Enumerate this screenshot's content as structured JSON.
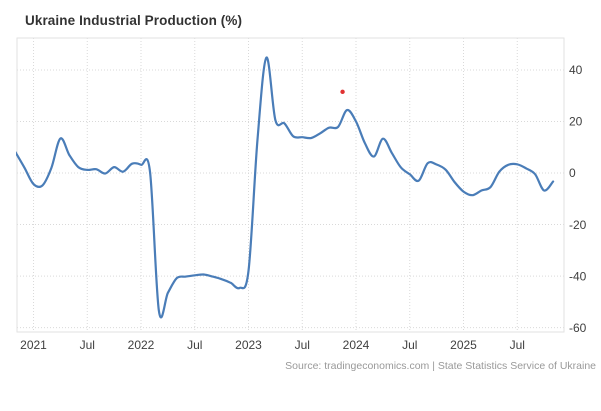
{
  "header": {
    "title": "Ukraine Industrial Production (%)"
  },
  "source": {
    "text": "Source: tradingeconomics.com | State Statistics Service of Ukraine"
  },
  "chart_data": {
    "type": "line",
    "title": "Ukraine Industrial Production (%)",
    "xlabel": "",
    "ylabel": "",
    "unit": "%",
    "legend": "none",
    "grid": "dotted",
    "y_axis_side": "right",
    "ylim": [
      -61.7,
      52.4
    ],
    "y_ticks": [
      40,
      20,
      0,
      -20,
      -40,
      -60
    ],
    "x_tick_labels": [
      "2021",
      "Jul",
      "2022",
      "Jul",
      "2023",
      "Jul",
      "2024",
      "Jul",
      "2025",
      "Jul"
    ],
    "x_ticks": [
      {
        "label": "2021",
        "month": "2021-01"
      },
      {
        "label": "Jul",
        "month": "2021-07"
      },
      {
        "label": "2022",
        "month": "2022-01"
      },
      {
        "label": "Jul",
        "month": "2022-07"
      },
      {
        "label": "2023",
        "month": "2023-01"
      },
      {
        "label": "Jul",
        "month": "2023-07"
      },
      {
        "label": "2024",
        "month": "2024-01"
      },
      {
        "label": "Jul",
        "month": "2024-07"
      },
      {
        "label": "2025",
        "month": "2025-01"
      },
      {
        "label": "Jul",
        "month": "2025-07"
      }
    ],
    "months": [
      "2020-11",
      "2020-12",
      "2021-01",
      "2021-02",
      "2021-03",
      "2021-04",
      "2021-05",
      "2021-06",
      "2021-07",
      "2021-08",
      "2021-09",
      "2021-10",
      "2021-11",
      "2021-12",
      "2022-01",
      "2022-02",
      "2022-03",
      "2022-04",
      "2022-05",
      "2022-06",
      "2022-07",
      "2022-08",
      "2022-09",
      "2022-10",
      "2022-11",
      "2022-12",
      "2023-01",
      "2023-02",
      "2023-03",
      "2023-04",
      "2023-05",
      "2023-06",
      "2023-07",
      "2023-08",
      "2023-09",
      "2023-10",
      "2023-11",
      "2023-12",
      "2024-01",
      "2024-02",
      "2024-03",
      "2024-04",
      "2024-05",
      "2024-06",
      "2024-07",
      "2024-08",
      "2024-09",
      "2024-10",
      "2024-11",
      "2024-12",
      "2025-01",
      "2025-02",
      "2025-03",
      "2025-04",
      "2025-05",
      "2025-06",
      "2025-07",
      "2025-08",
      "2025-09",
      "2025-10",
      "2025-11"
    ],
    "values": [
      8.0,
      2.0,
      -4.3,
      -4.8,
      2.0,
      13.4,
      7.0,
      2.3,
      1.2,
      1.5,
      -0.2,
      2.3,
      0.5,
      3.6,
      3.2,
      0.5,
      -53.5,
      -46.5,
      -40.8,
      -40.2,
      -39.7,
      -39.4,
      -40.2,
      -41.2,
      -42.6,
      -44.6,
      -38.0,
      13.0,
      44.8,
      20.5,
      19.3,
      14.2,
      13.9,
      13.6,
      15.4,
      17.6,
      17.9,
      24.4,
      20.0,
      11.5,
      6.4,
      13.3,
      7.8,
      2.2,
      -0.5,
      -3.0,
      3.8,
      3.3,
      1.3,
      -3.5,
      -7.2,
      -8.6,
      -6.8,
      -5.5,
      0.5,
      3.2,
      3.4,
      1.8,
      -0.5,
      -6.8,
      -3.3
    ],
    "annotations": [
      {
        "type": "dot",
        "month": "2023-11",
        "month_offset": 0.5,
        "value": 31.5,
        "color": "#e03131",
        "radius": 2.2
      }
    ],
    "colors": {
      "line": "#4a7db8",
      "grid": "#d9d9d9",
      "plot_border": "#e2e2e2",
      "axis_label": "#404040",
      "title": "#333333",
      "source_text": "#999999",
      "background": "#ffffff"
    }
  }
}
